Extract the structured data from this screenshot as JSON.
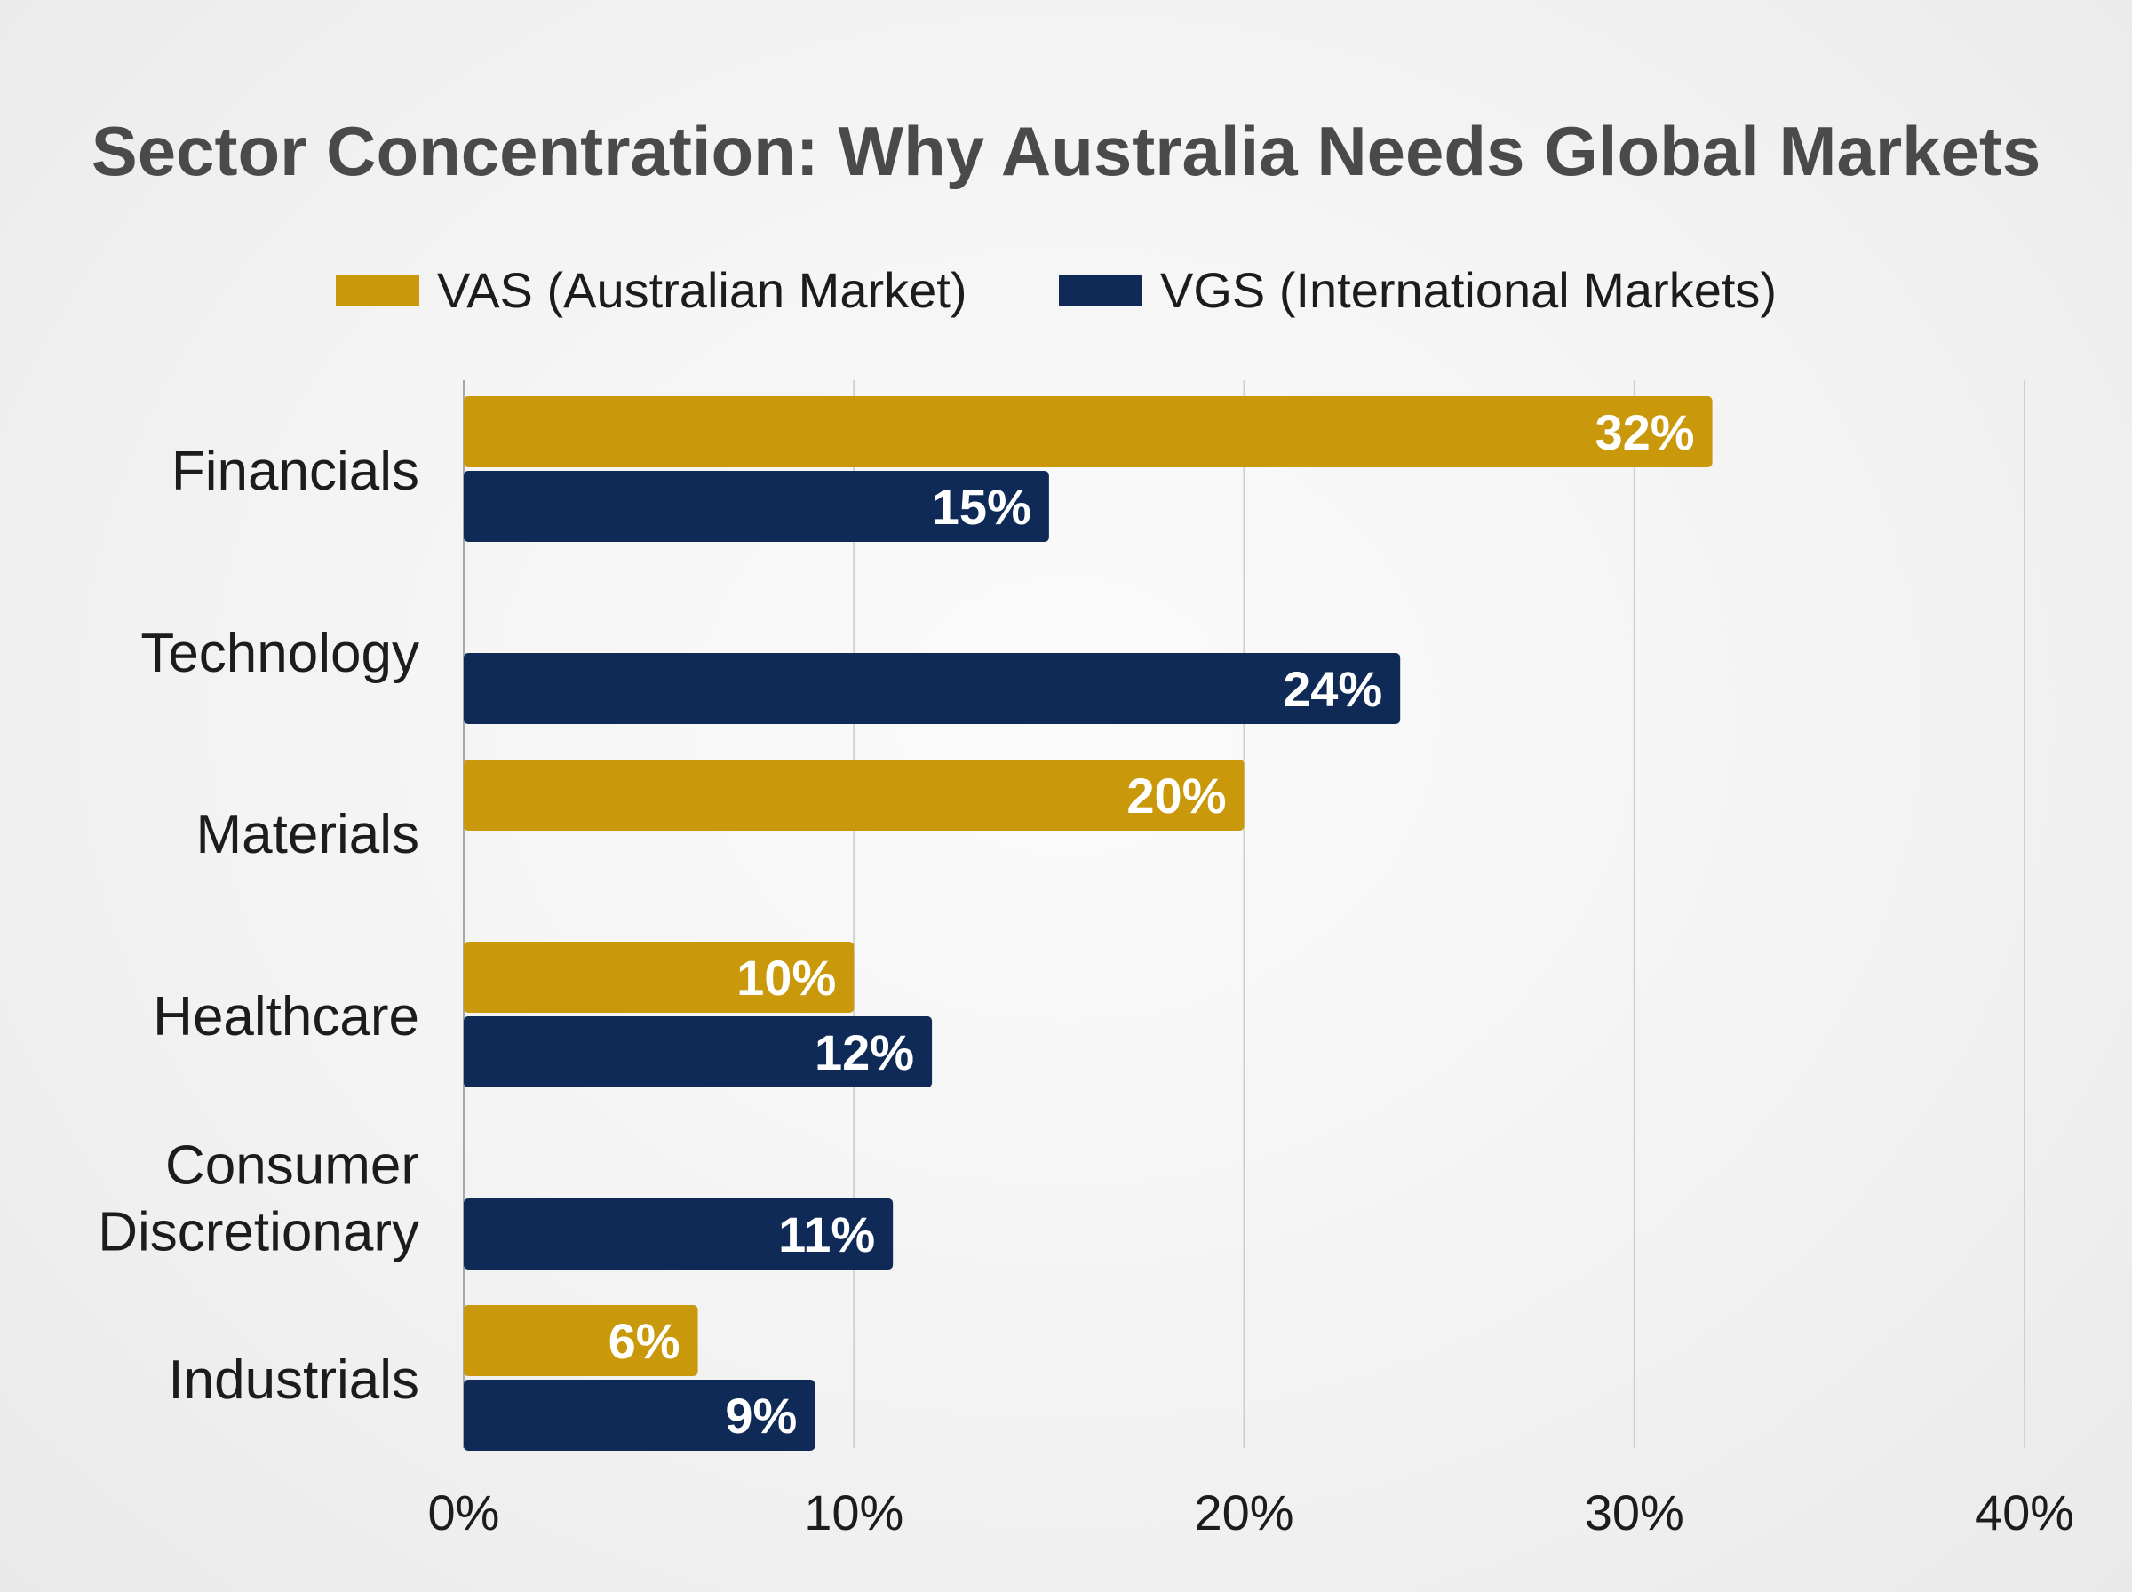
{
  "chart_data": {
    "type": "bar",
    "orientation": "horizontal",
    "title": "Sector Concentration: Why Australia Needs Global Markets",
    "xlabel": "",
    "ylabel": "",
    "categories": [
      "Financials",
      "Technology",
      "Materials",
      "Healthcare",
      "Consumer Discretionary",
      "Industrials"
    ],
    "series": [
      {
        "name": "VAS (Australian Market)",
        "color": "#c9990b",
        "values": [
          32,
          null,
          20,
          10,
          null,
          6
        ],
        "labels": [
          "32%",
          "",
          "20%",
          "10%",
          "",
          "6%"
        ]
      },
      {
        "name": "VGS (International Markets)",
        "color": "#0f2a57",
        "values": [
          15,
          24,
          null,
          12,
          11,
          9
        ],
        "labels": [
          "15%",
          "24%",
          "",
          "12%",
          "11%",
          "9%"
        ]
      }
    ],
    "xlim": [
      0,
      40
    ],
    "xticks": [
      0,
      10,
      20,
      30,
      40
    ],
    "xtick_labels": [
      "0%",
      "10%",
      "20%",
      "30%",
      "40%"
    ],
    "grid": true,
    "legend_position": "top"
  }
}
